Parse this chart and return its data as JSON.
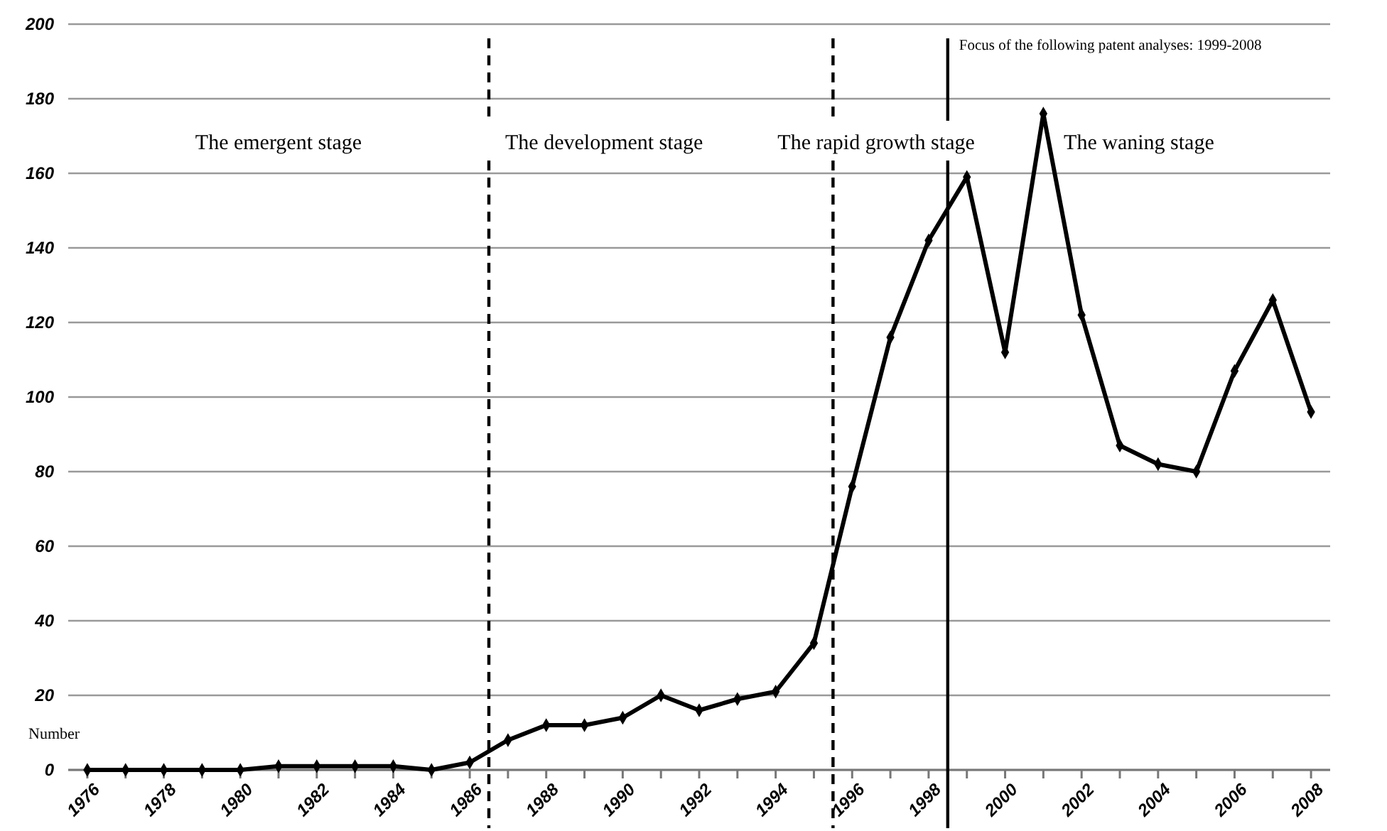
{
  "chart_data": {
    "type": "line",
    "ylabel": "Number",
    "x": [
      1976,
      1977,
      1978,
      1979,
      1980,
      1981,
      1982,
      1983,
      1984,
      1985,
      1986,
      1987,
      1988,
      1989,
      1990,
      1991,
      1992,
      1993,
      1994,
      1995,
      1996,
      1997,
      1998,
      1999,
      2000,
      2001,
      2002,
      2003,
      2004,
      2005,
      2006,
      2007,
      2008
    ],
    "series": [
      {
        "color": "#000000",
        "values": [
          0,
          0,
          0,
          0,
          0,
          1,
          1,
          1,
          1,
          0,
          2,
          8,
          12,
          12,
          14,
          20,
          16,
          19,
          21,
          34,
          76,
          116,
          142,
          159,
          112,
          176,
          122,
          87,
          82,
          80,
          107,
          126,
          96
        ]
      }
    ],
    "xlim": [
      1975.5,
      2008.5
    ],
    "xticks": [
      1976,
      {
        "value": 1977,
        "label": null
      },
      1978,
      {
        "value": 1979,
        "label": null
      },
      1980,
      {
        "value": 1981,
        "label": null
      },
      1982,
      {
        "value": 1983,
        "label": null
      },
      1984,
      {
        "value": 1985,
        "label": null
      },
      1986,
      {
        "value": 1987,
        "label": null
      },
      1988,
      {
        "value": 1989,
        "label": null
      },
      1990,
      {
        "value": 1991,
        "label": null
      },
      1992,
      {
        "value": 1993,
        "label": null
      },
      1994,
      {
        "value": 1995,
        "label": null
      },
      1996,
      {
        "value": 1997,
        "label": null
      },
      1998,
      {
        "value": 1999,
        "label": null
      },
      2000,
      {
        "value": 2001,
        "label": null
      },
      2002,
      {
        "value": 2003,
        "label": null
      },
      2004,
      {
        "value": 2005,
        "label": null
      },
      2006,
      {
        "value": 2007,
        "label": null
      },
      2008
    ],
    "ylim": [
      0,
      200
    ],
    "yticks": [
      0,
      20,
      40,
      60,
      80,
      100,
      120,
      140,
      160,
      180,
      200
    ],
    "grid": "y",
    "marker": "diamond",
    "line_style": "solid",
    "ref_lines": [
      {
        "axis": "x",
        "value": 1986.5,
        "line_style": "dashed",
        "color": "#000000"
      },
      {
        "axis": "x",
        "value": 1995.5,
        "line_style": "dashed",
        "color": "#000000"
      },
      {
        "axis": "x",
        "value": 1998.5,
        "line_style": "solid",
        "color": "#000000",
        "label": "Focus of the following patent analyses: 1999-2008"
      }
    ],
    "annotations": [
      "The emergent stage",
      "The development stage",
      "The rapid growth stage",
      "The waning stage"
    ]
  }
}
